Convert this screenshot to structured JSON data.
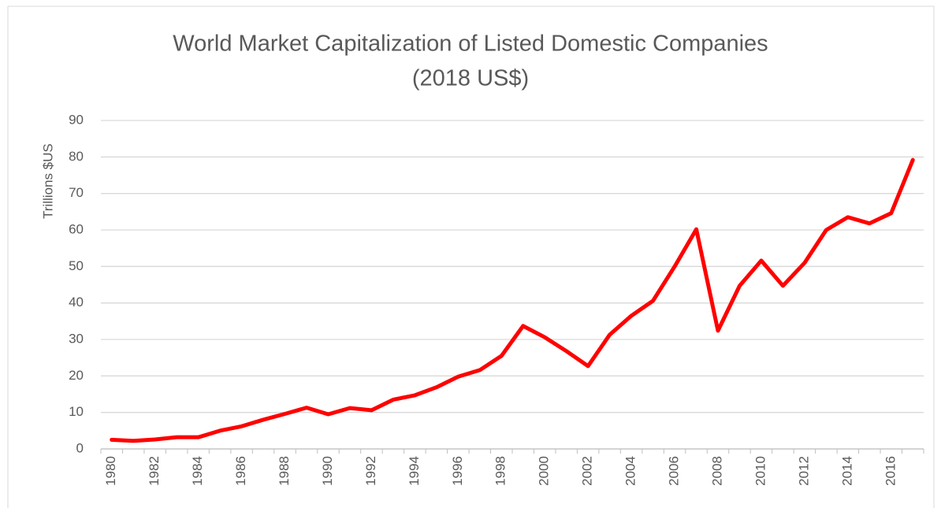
{
  "chart_data": {
    "type": "line",
    "title": [
      "World Market Capitalization of Listed Domestic Companies",
      "(2018 US$)"
    ],
    "y_label": "Trillions $US",
    "categories": [
      "1980",
      null,
      "1982",
      null,
      "1984",
      null,
      "1986",
      null,
      "1988",
      null,
      "1990",
      null,
      "1992",
      null,
      "1994",
      null,
      "1996",
      null,
      "1998",
      null,
      "2000",
      null,
      "2002",
      null,
      "2004",
      null,
      "2006",
      null,
      "2008",
      null,
      "2010",
      null,
      "2012",
      null,
      "2014",
      null,
      "2016",
      null
    ],
    "series": [
      {
        "name": "World market capitalization",
        "color": "#ff0000",
        "values": [
          2.5,
          2.2,
          2.6,
          3.2,
          3.2,
          5,
          6.2,
          8,
          9.6,
          11.3,
          9.5,
          11.2,
          10.6,
          13.5,
          14.7,
          16.9,
          19.8,
          21.6,
          25.5,
          33.7,
          30.6,
          26.8,
          22.7,
          31.3,
          36.5,
          40.6,
          50,
          60.2,
          32.4,
          44.7,
          51.6,
          44.7,
          51,
          60,
          63.5,
          61.8,
          64.6,
          79.2
        ]
      }
    ],
    "ylim": [
      0,
      90
    ],
    "yticks": [
      0,
      10,
      20,
      30,
      40,
      50,
      60,
      70,
      80,
      90
    ],
    "grid": true
  }
}
